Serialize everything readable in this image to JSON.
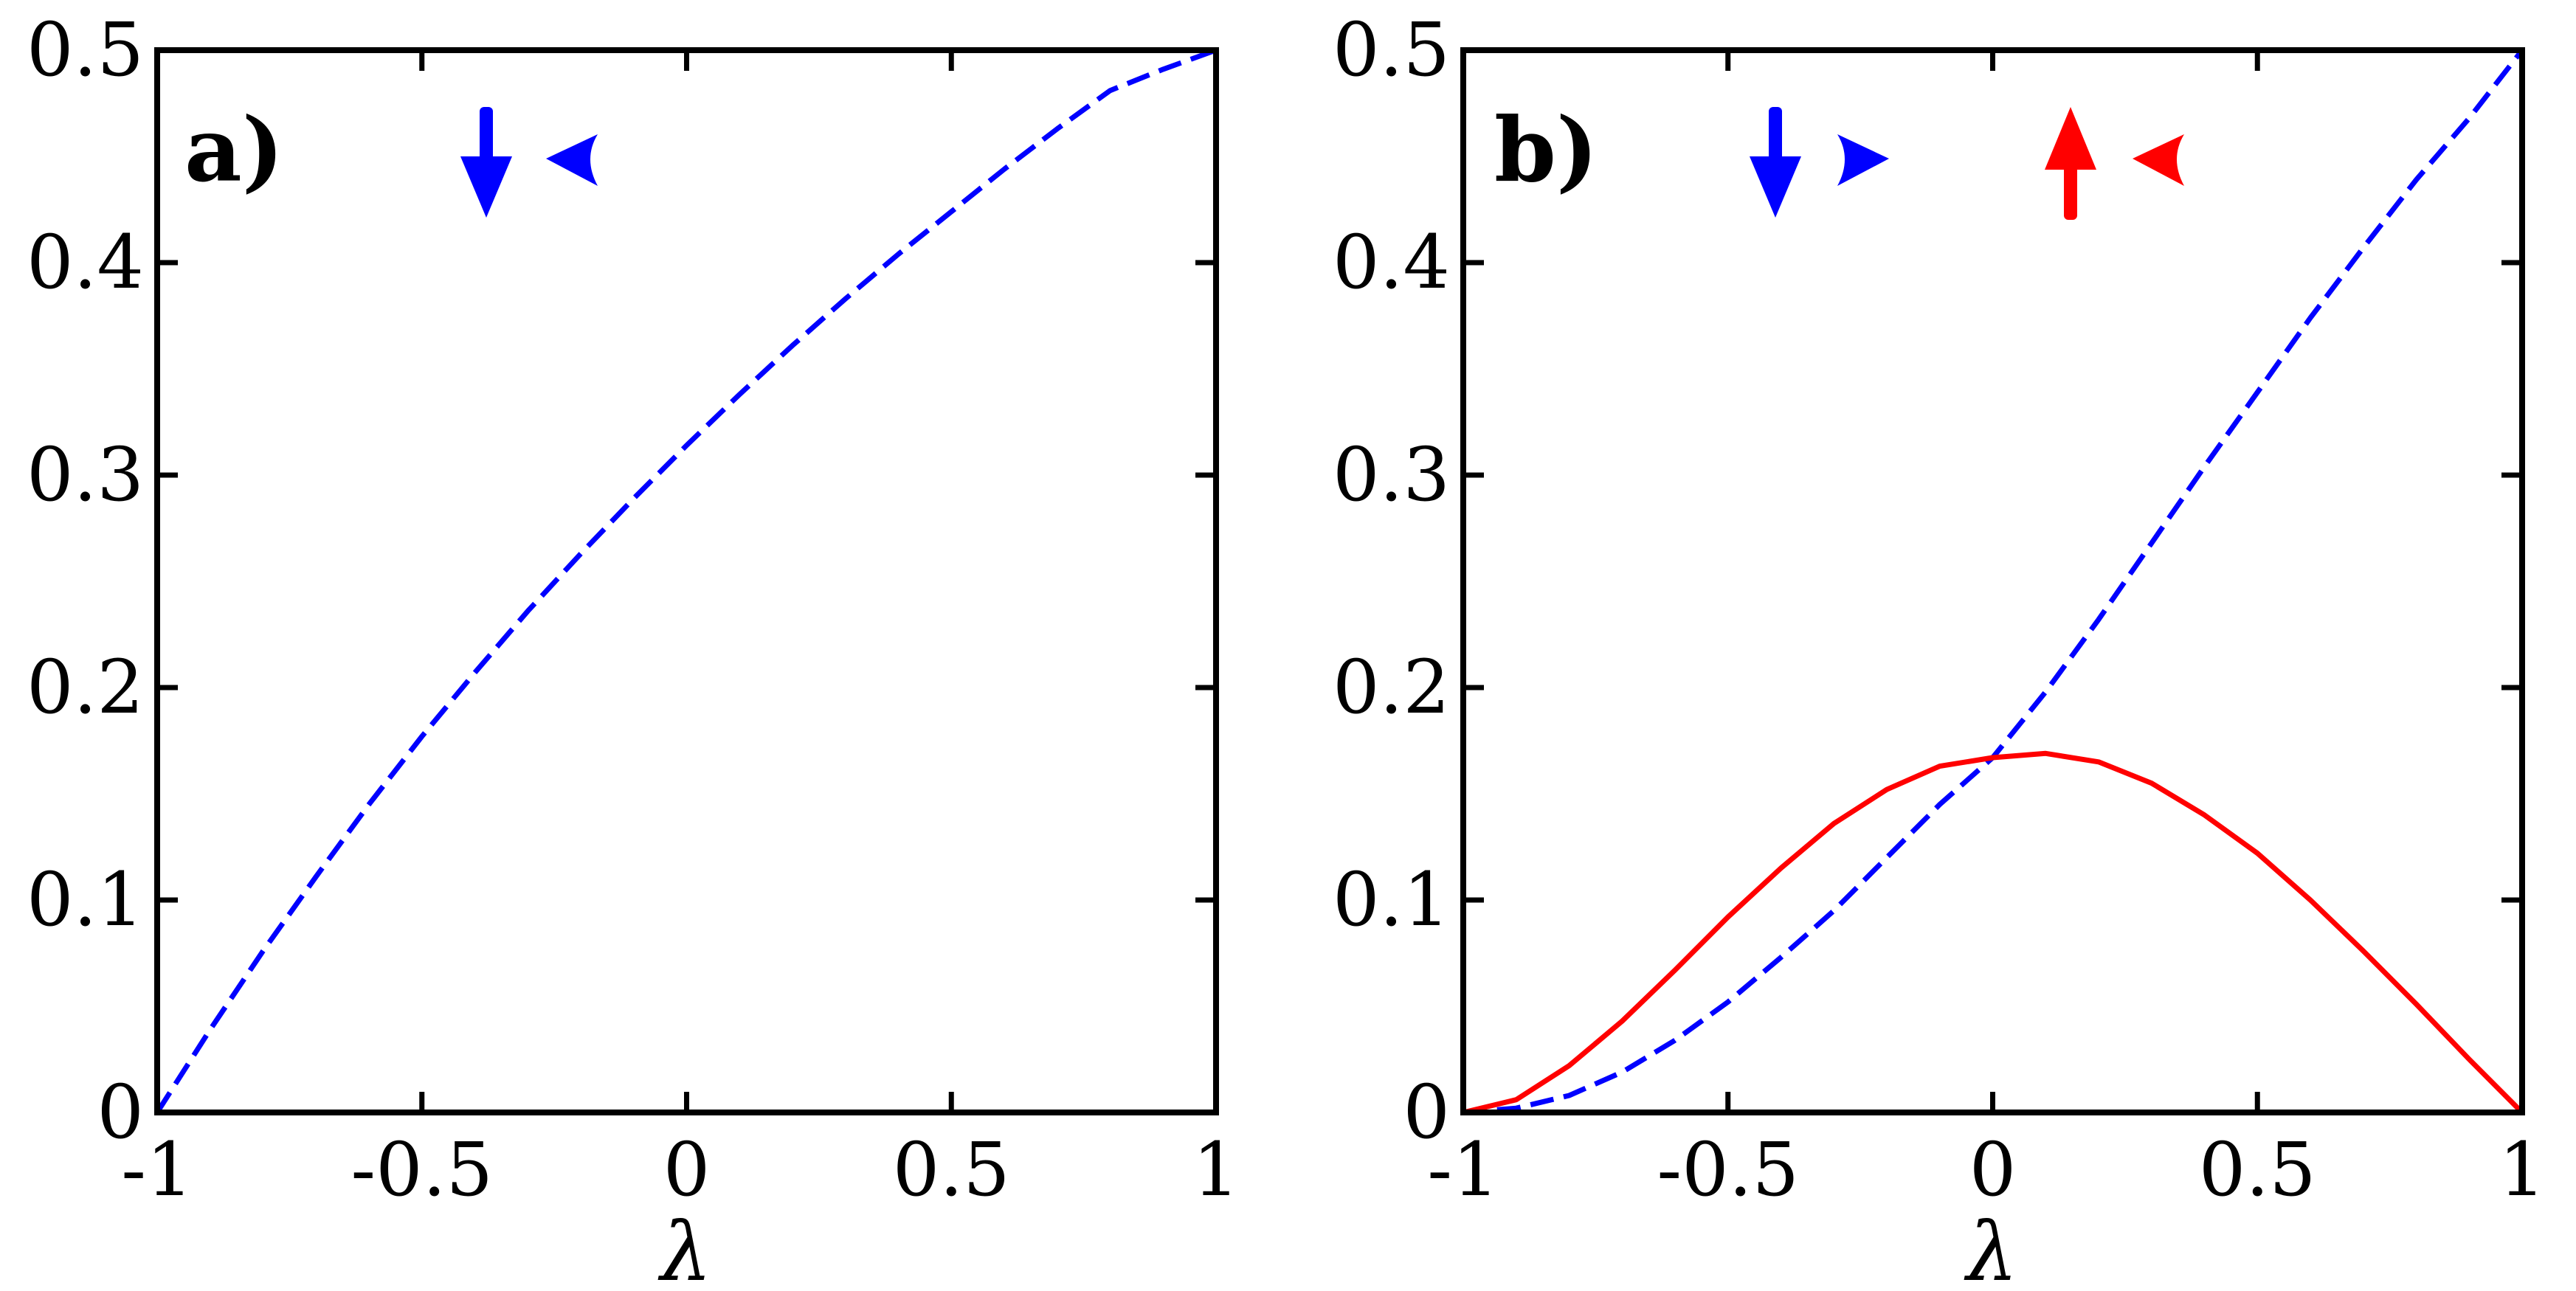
{
  "colors": {
    "blue": "#0000ff",
    "red": "#ff0000",
    "axis": "#000000"
  },
  "chart_data": [
    {
      "type": "line",
      "panel_label": "a)",
      "xlabel": "λ",
      "ylabel": "",
      "xlim": [
        -1,
        1
      ],
      "ylim": [
        0,
        0.5
      ],
      "x_ticks": [
        "-1",
        "-0.5",
        "0",
        "0.5",
        "1"
      ],
      "y_ticks": [
        "0",
        "0.1",
        "0.2",
        "0.3",
        "0.4",
        "0.5"
      ],
      "grid": false,
      "legend_glyphs": [
        {
          "color": "#0000ff",
          "icons": [
            "down-arrow-icon",
            "left-arrowhead-icon"
          ]
        }
      ],
      "series": [
        {
          "color": "#0000ff",
          "style": "dashed",
          "x": [
            -1,
            -0.9,
            -0.8,
            -0.7,
            -0.6,
            -0.5,
            -0.4,
            -0.3,
            -0.2,
            -0.1,
            0,
            0.1,
            0.2,
            0.3,
            0.4,
            0.5,
            0.6,
            0.7,
            0.8,
            0.9,
            1
          ],
          "y": [
            0,
            0.039,
            0.076,
            0.111,
            0.145,
            0.177,
            0.207,
            0.236,
            0.263,
            0.289,
            0.314,
            0.338,
            0.361,
            0.383,
            0.404,
            0.424,
            0.444,
            0.463,
            0.481,
            0.491,
            0.5
          ]
        }
      ]
    },
    {
      "type": "line",
      "panel_label": "b)",
      "xlabel": "λ",
      "ylabel": "",
      "xlim": [
        -1,
        1
      ],
      "ylim": [
        0,
        0.5
      ],
      "x_ticks": [
        "-1",
        "-0.5",
        "0",
        "0.5",
        "1"
      ],
      "y_ticks": [
        "0",
        "0.1",
        "0.2",
        "0.3",
        "0.4",
        "0.5"
      ],
      "grid": false,
      "legend_glyphs": [
        {
          "color": "#0000ff",
          "icons": [
            "down-arrow-icon",
            "right-arrowhead-icon"
          ]
        },
        {
          "color": "#ff0000",
          "icons": [
            "up-arrow-icon",
            "left-arrowhead-icon"
          ]
        }
      ],
      "series": [
        {
          "color": "#0000ff",
          "style": "dashed",
          "x": [
            -1,
            -0.9,
            -0.8,
            -0.7,
            -0.6,
            -0.5,
            -0.4,
            -0.3,
            -0.2,
            -0.1,
            0,
            0.1,
            0.2,
            0.3,
            0.4,
            0.5,
            0.6,
            0.7,
            0.8,
            0.9,
            1
          ],
          "y": [
            0,
            0.002,
            0.008,
            0.019,
            0.034,
            0.052,
            0.073,
            0.095,
            0.12,
            0.145,
            0.167,
            0.198,
            0.232,
            0.268,
            0.304,
            0.339,
            0.374,
            0.407,
            0.439,
            0.468,
            0.5
          ]
        },
        {
          "color": "#ff0000",
          "style": "solid",
          "x": [
            -1,
            -0.9,
            -0.8,
            -0.7,
            -0.6,
            -0.5,
            -0.4,
            -0.3,
            -0.2,
            -0.1,
            0,
            0.1,
            0.2,
            0.3,
            0.4,
            0.5,
            0.6,
            0.7,
            0.8,
            0.9,
            1
          ],
          "y": [
            0,
            0.006,
            0.022,
            0.043,
            0.067,
            0.092,
            0.115,
            0.136,
            0.152,
            0.163,
            0.167,
            0.169,
            0.165,
            0.155,
            0.14,
            0.122,
            0.1,
            0.076,
            0.051,
            0.025,
            0
          ]
        }
      ]
    }
  ]
}
